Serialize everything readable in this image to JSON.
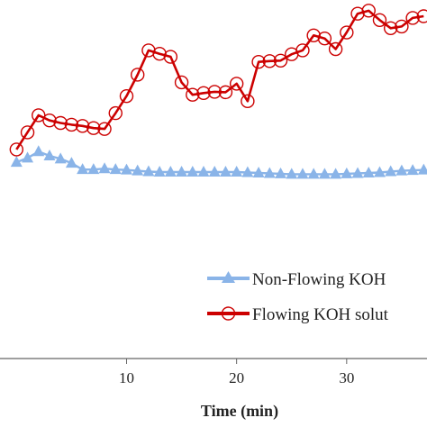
{
  "chart_data": {
    "type": "line",
    "xlabel": "Time (min)",
    "xlim": [
      -1.5,
      37.3
    ],
    "ylim": [
      0,
      100
    ],
    "x_ticks": [
      10,
      20,
      30
    ],
    "legend_position": "bottom-right",
    "series": [
      {
        "name": "Non-Flowing KOH",
        "color": "#8ab4e8",
        "marker": "triangle",
        "x": [
          0,
          1,
          2,
          3,
          4,
          5,
          6,
          7,
          8,
          9,
          10,
          11,
          12,
          13,
          14,
          15,
          16,
          17,
          18,
          19,
          20,
          21,
          22,
          23,
          24,
          25,
          26,
          27,
          28,
          29,
          30,
          31,
          32,
          33,
          34,
          35,
          36,
          37
        ],
        "y": [
          62.0,
          63.0,
          64.5,
          63.5,
          62.8,
          61.8,
          60.3,
          60.3,
          60.5,
          60.3,
          60.2,
          60.0,
          59.8,
          59.7,
          59.7,
          59.7,
          59.7,
          59.7,
          59.7,
          59.7,
          59.7,
          59.6,
          59.5,
          59.4,
          59.3,
          59.2,
          59.2,
          59.2,
          59.2,
          59.2,
          59.3,
          59.4,
          59.5,
          59.6,
          59.8,
          60.0,
          60.1,
          60.2
        ]
      },
      {
        "name": "Flowing KOH solut",
        "color": "#cc0000",
        "marker": "circle",
        "x": [
          0,
          1,
          2,
          3,
          4,
          5,
          6,
          7,
          8,
          9,
          10,
          11,
          12,
          13,
          14,
          15,
          16,
          17,
          18,
          19,
          20,
          21,
          22,
          23,
          24,
          25,
          26,
          27,
          28,
          29,
          30,
          31,
          32,
          33,
          34,
          35,
          36,
          37
        ],
        "y": [
          65.0,
          69.0,
          73.0,
          71.8,
          71.2,
          70.8,
          70.5,
          70.0,
          69.8,
          73.5,
          77.5,
          82.5,
          88.2,
          87.4,
          86.7,
          80.7,
          77.8,
          78.2,
          78.5,
          78.4,
          80.4,
          76.3,
          85.5,
          85.7,
          85.8,
          87.3,
          88.2,
          91.7,
          91.0,
          88.5,
          92.4,
          96.8,
          97.5,
          95.3,
          93.4,
          93.8,
          95.8,
          96.2
        ]
      }
    ]
  }
}
